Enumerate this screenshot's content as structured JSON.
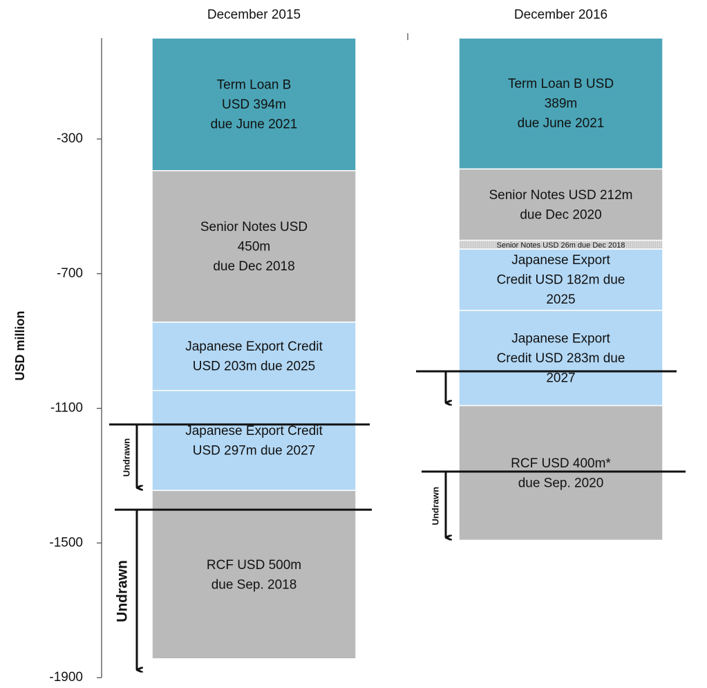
{
  "chart_data": {
    "type": "stacked_bar",
    "y_label": "USD million",
    "ylim": [
      -1900,
      0
    ],
    "yticks": [
      -300,
      -700,
      -1100,
      -1500,
      -1900
    ],
    "categories": [
      "December 2015",
      "December 2016"
    ],
    "stacks": [
      [
        {
          "lines": [
            "Term Loan B",
            "USD 394m",
            "due June 2021"
          ],
          "value": -394,
          "color": "#4ba5b7"
        },
        {
          "lines": [
            "Senior Notes USD",
            "450m",
            "due Dec 2018"
          ],
          "value": -450,
          "color": "#bababa"
        },
        {
          "lines": [
            "Japanese Export Credit",
            "USD 203m due 2025"
          ],
          "value": -203,
          "color": "#b3d8f5"
        },
        {
          "lines": [
            "Japanese Export Credit",
            "USD 297m due 2027"
          ],
          "value": -297,
          "color": "#b3d8f5"
        },
        {
          "lines": [
            "RCF USD 500m",
            "due Sep. 2018"
          ],
          "value": -500,
          "color": "#bababa"
        }
      ],
      [
        {
          "lines": [
            "Term Loan B USD",
            "389m",
            "due June 2021"
          ],
          "value": -389,
          "color": "#4ba5b7"
        },
        {
          "lines": [
            "Senior Notes USD 212m",
            "due Dec 2020"
          ],
          "value": -212,
          "color": "#bababa"
        },
        {
          "lines": [
            "Senior Notes USD 26m due Dec 2018"
          ],
          "value": -26,
          "color": "#cfcfcf",
          "hatch": true
        },
        {
          "lines": [
            "Japanese Export",
            "Credit USD 182m due",
            "2025"
          ],
          "value": -182,
          "color": "#b3d8f5"
        },
        {
          "lines": [
            "Japanese Export",
            "Credit USD 283m due",
            "2027"
          ],
          "value": -283,
          "color": "#b3d8f5"
        },
        {
          "lines": [
            "RCF USD 400m*",
            "due Sep. 2020"
          ],
          "value": -400,
          "color": "#bababa"
        }
      ]
    ],
    "drawn_lines": [
      [
        {
          "value": -1148,
          "label": "Undrawn"
        },
        {
          "value": -1401,
          "label": "Undrawn"
        }
      ],
      [
        {
          "value": -990
        },
        {
          "value": -1288,
          "label": "Undrawn"
        }
      ]
    ]
  }
}
